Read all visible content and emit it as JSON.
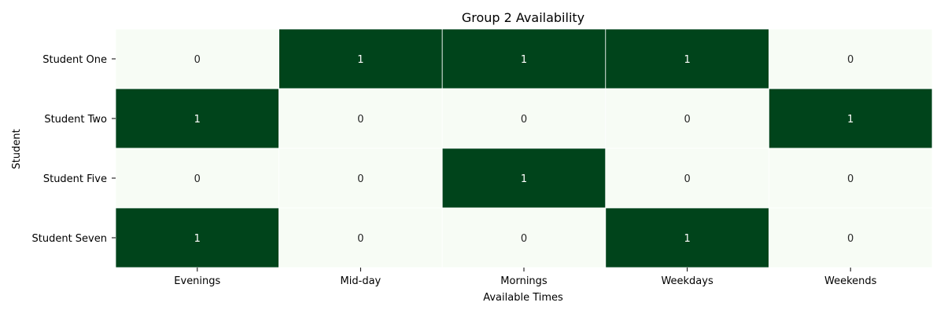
{
  "chart_data": {
    "type": "heatmap",
    "title": "Group 2 Availability",
    "xlabel": "Available Times",
    "ylabel": "Student",
    "x_categories": [
      "Evenings",
      "Mid-day",
      "Mornings",
      "Weekdays",
      "Weekends"
    ],
    "y_categories": [
      "Student One",
      "Student Two",
      "Student Five",
      "Student Seven"
    ],
    "values": [
      [
        0,
        1,
        1,
        1,
        0
      ],
      [
        1,
        0,
        0,
        0,
        1
      ],
      [
        0,
        0,
        1,
        0,
        0
      ],
      [
        1,
        0,
        0,
        1,
        0
      ]
    ],
    "annotations": true,
    "colorbar": false,
    "colors": {
      "low": "#f7fcf5",
      "high": "#00441b",
      "text_on_low": "#262626",
      "text_on_high": "#ffffff",
      "cell_border": "#ffffff"
    }
  }
}
